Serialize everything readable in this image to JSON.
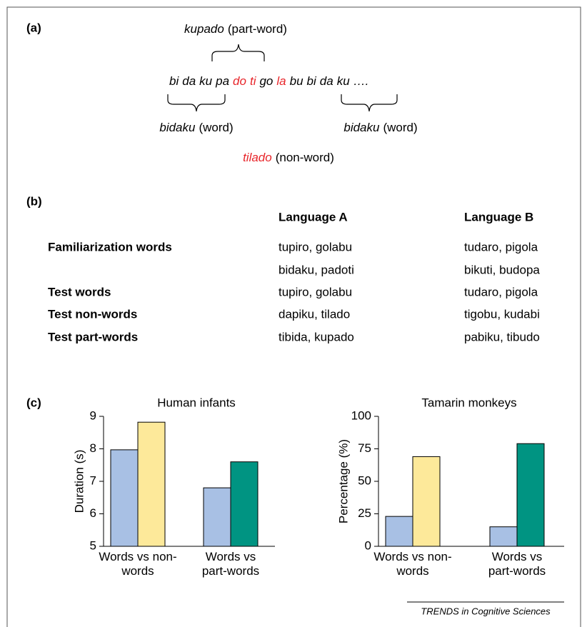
{
  "panel_a": {
    "label": "(a)",
    "syllables": [
      {
        "text": "bi",
        "highlight": false
      },
      {
        "text": "da",
        "highlight": false
      },
      {
        "text": "ku",
        "highlight": false
      },
      {
        "text": "pa",
        "highlight": false
      },
      {
        "text": "do",
        "highlight": true
      },
      {
        "text": "ti",
        "highlight": true
      },
      {
        "text": "go",
        "highlight": false
      },
      {
        "text": "la",
        "highlight": true
      },
      {
        "text": "bu",
        "highlight": false
      },
      {
        "text": "bi",
        "highlight": false
      },
      {
        "text": "da",
        "highlight": false
      },
      {
        "text": "ku",
        "highlight": false
      },
      {
        "text": "….",
        "highlight": false
      }
    ],
    "annotations": [
      {
        "word": "kupado",
        "gloss": "(part-word)",
        "highlight": false
      },
      {
        "word": "bidaku",
        "gloss": "(word)",
        "highlight": false
      },
      {
        "word": "bidaku",
        "gloss": "(word)",
        "highlight": false
      },
      {
        "word": "tilado",
        "gloss": "(non-word)",
        "highlight": true
      }
    ]
  },
  "panel_b": {
    "label": "(b)",
    "columns": [
      "Language A",
      "Language B"
    ],
    "rows": [
      [
        "Familiarization words",
        "tupiro, golabu",
        "tudaro, pigola"
      ],
      [
        null,
        "bidaku, padoti",
        "bikuti, budopa"
      ],
      [
        "Test words",
        "tupiro, golabu",
        "tudaro, pigola"
      ],
      [
        "Test non-words",
        "dapiku, tilado",
        "tigobu, kudabi"
      ],
      [
        "Test part-words",
        "tibida, kupado",
        "pabiku, tibudo"
      ]
    ]
  },
  "panel_c": {
    "label": "(c)"
  },
  "chart_data": [
    {
      "type": "bar",
      "title": "Human infants",
      "y_label": "Duration (s)",
      "categories": [
        "Words vs non-words",
        "Words vs part-words"
      ],
      "series": [
        {
          "colors": [
            "#a8c0e4",
            "#a8c0e4"
          ],
          "values": [
            7.97,
            6.8
          ]
        },
        {
          "colors": [
            "#fde99a",
            "#009482"
          ],
          "values": [
            8.82,
            7.6
          ]
        }
      ],
      "ylim": [
        5,
        9
      ],
      "yticks": [
        5,
        6,
        7,
        8,
        9
      ]
    },
    {
      "type": "bar",
      "title": "Tamarin monkeys",
      "y_label": "Percentage (%)",
      "categories": [
        "Words vs non-words",
        "Words vs part-words"
      ],
      "series": [
        {
          "colors": [
            "#a8c0e4",
            "#a8c0e4"
          ],
          "values": [
            23,
            15
          ]
        },
        {
          "colors": [
            "#fde99a",
            "#009482"
          ],
          "values": [
            69,
            79
          ]
        }
      ],
      "ylim": [
        0,
        100
      ],
      "yticks": [
        0,
        25,
        50,
        75,
        100
      ]
    }
  ],
  "footer": "TRENDS in Cognitive Sciences"
}
